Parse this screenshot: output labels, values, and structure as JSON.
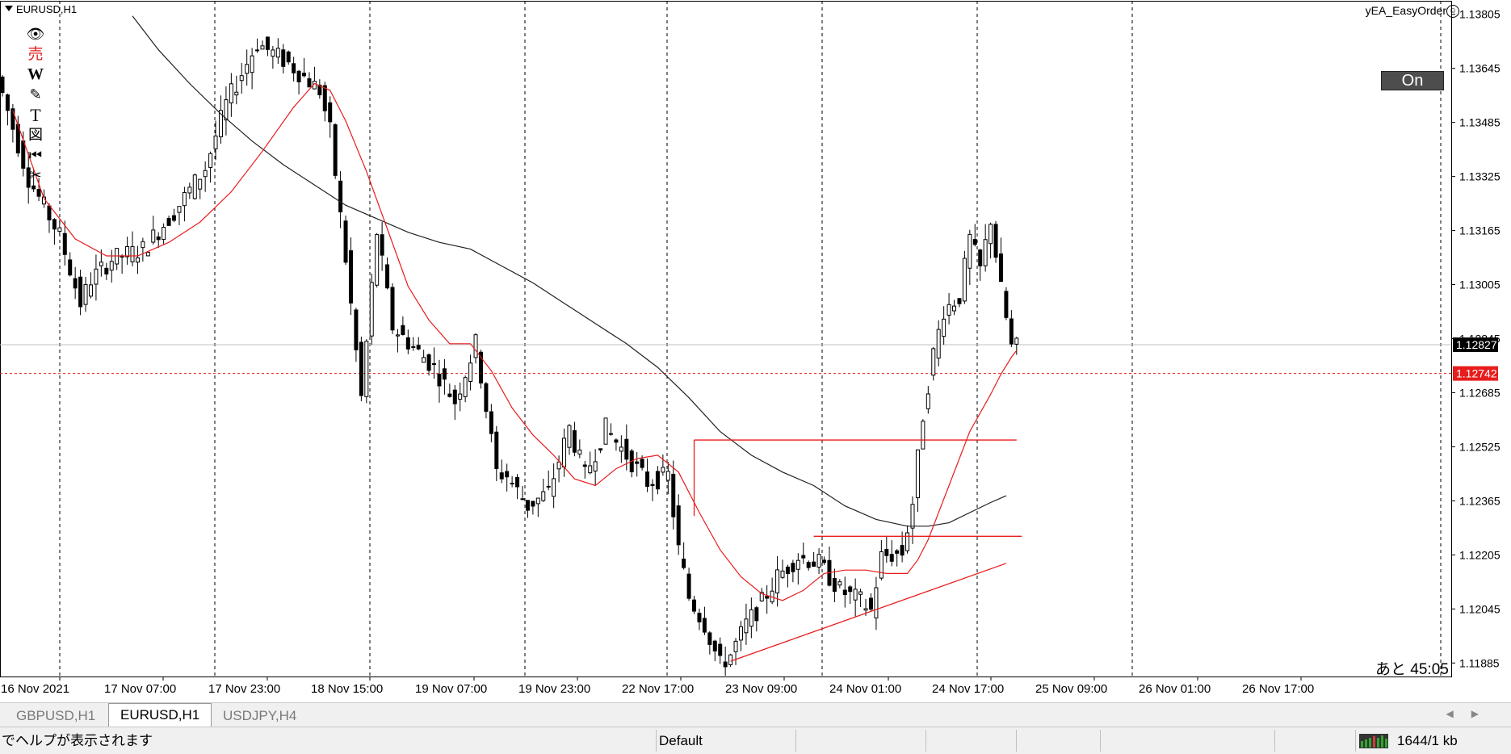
{
  "chart": {
    "title": "EURUSD,H1",
    "ea_name": "yEA_EasyOrder",
    "ea_icon": "smiley-icon",
    "on_button": "On",
    "countdown": "あと 45:05",
    "bid_price_label": "1.12827",
    "hidden_price_label": "1.12845",
    "red_level_label": "1.12742",
    "colors": {
      "up": "#ffffff",
      "down": "#000000",
      "ma_fast": "#e81c1c",
      "ma_slow": "#202020",
      "level": "#e81c1c"
    }
  },
  "toolbar": [
    {
      "icon": "eye-icon",
      "glyph": "👁"
    },
    {
      "icon": "sell-icon",
      "glyph": "売"
    },
    {
      "icon": "w-icon",
      "glyph": "W"
    },
    {
      "icon": "pencil-icon",
      "glyph": "✎"
    },
    {
      "icon": "text-icon",
      "glyph": "T"
    },
    {
      "icon": "figure-icon",
      "glyph": "図"
    },
    {
      "icon": "rewind-icon",
      "glyph": "⏮"
    },
    {
      "icon": "scissors-icon",
      "glyph": "✂"
    }
  ],
  "chart_data": {
    "type": "candlestick",
    "symbol": "EURUSD",
    "timeframe": "H1",
    "y_ticks": [
      "1.13805",
      "1.13645",
      "1.13485",
      "1.13325",
      "1.13165",
      "1.13005",
      "1.12845",
      "1.12685",
      "1.12525",
      "1.12365",
      "1.12205",
      "1.12045",
      "1.11885"
    ],
    "ylim": [
      1.11845,
      1.13845
    ],
    "x_ticks": [
      "16 Nov 2021",
      "17 Nov 07:00",
      "17 Nov 23:00",
      "18 Nov 15:00",
      "19 Nov 07:00",
      "19 Nov 23:00",
      "22 Nov 17:00",
      "23 Nov 09:00",
      "24 Nov 01:00",
      "24 Nov 17:00",
      "25 Nov 09:00",
      "26 Nov 01:00",
      "26 Nov 17:00"
    ],
    "anchors": [
      {
        "pos": 0,
        "price": 1.1362
      },
      {
        "pos": 6,
        "price": 1.1332
      },
      {
        "pos": 12,
        "price": 1.1315
      },
      {
        "pos": 16,
        "price": 1.1295
      },
      {
        "pos": 18,
        "price": 1.1302
      },
      {
        "pos": 22,
        "price": 1.1308
      },
      {
        "pos": 28,
        "price": 1.1311
      },
      {
        "pos": 34,
        "price": 1.1322
      },
      {
        "pos": 40,
        "price": 1.1335
      },
      {
        "pos": 44,
        "price": 1.1354
      },
      {
        "pos": 50,
        "price": 1.1372
      },
      {
        "pos": 56,
        "price": 1.1366
      },
      {
        "pos": 62,
        "price": 1.1358
      },
      {
        "pos": 64,
        "price": 1.1346
      },
      {
        "pos": 67,
        "price": 1.1308
      },
      {
        "pos": 70,
        "price": 1.1267
      },
      {
        "pos": 73,
        "price": 1.1316
      },
      {
        "pos": 76,
        "price": 1.1288
      },
      {
        "pos": 80,
        "price": 1.1282
      },
      {
        "pos": 84,
        "price": 1.1276
      },
      {
        "pos": 88,
        "price": 1.1266
      },
      {
        "pos": 92,
        "price": 1.1283
      },
      {
        "pos": 96,
        "price": 1.1245
      },
      {
        "pos": 98,
        "price": 1.1244
      },
      {
        "pos": 102,
        "price": 1.1235
      },
      {
        "pos": 106,
        "price": 1.1239
      },
      {
        "pos": 110,
        "price": 1.1258
      },
      {
        "pos": 113,
        "price": 1.1244
      },
      {
        "pos": 117,
        "price": 1.1258
      },
      {
        "pos": 121,
        "price": 1.125
      },
      {
        "pos": 125,
        "price": 1.1242
      },
      {
        "pos": 129,
        "price": 1.1244
      },
      {
        "pos": 131,
        "price": 1.1222
      },
      {
        "pos": 133,
        "price": 1.1208
      },
      {
        "pos": 136,
        "price": 1.12
      },
      {
        "pos": 139,
        "price": 1.1188
      },
      {
        "pos": 141,
        "price": 1.1191
      },
      {
        "pos": 144,
        "price": 1.12
      },
      {
        "pos": 146,
        "price": 1.1204
      },
      {
        "pos": 150,
        "price": 1.1214
      },
      {
        "pos": 154,
        "price": 1.122
      },
      {
        "pos": 158,
        "price": 1.1218
      },
      {
        "pos": 162,
        "price": 1.121
      },
      {
        "pos": 166,
        "price": 1.1207
      },
      {
        "pos": 168,
        "price": 1.1204
      },
      {
        "pos": 170,
        "price": 1.122
      },
      {
        "pos": 174,
        "price": 1.1221
      },
      {
        "pos": 176,
        "price": 1.1236
      },
      {
        "pos": 178,
        "price": 1.1262
      },
      {
        "pos": 180,
        "price": 1.128
      },
      {
        "pos": 182,
        "price": 1.1293
      },
      {
        "pos": 185,
        "price": 1.1297
      },
      {
        "pos": 187,
        "price": 1.1314
      },
      {
        "pos": 189,
        "price": 1.1305
      },
      {
        "pos": 191,
        "price": 1.132
      },
      {
        "pos": 193,
        "price": 1.1299
      },
      {
        "pos": 195,
        "price": 1.1282
      }
    ],
    "ma_fast": [
      {
        "pos": 2,
        "price": 1.1352
      },
      {
        "pos": 8,
        "price": 1.1326
      },
      {
        "pos": 14,
        "price": 1.1314
      },
      {
        "pos": 20,
        "price": 1.1309
      },
      {
        "pos": 26,
        "price": 1.1309
      },
      {
        "pos": 32,
        "price": 1.1313
      },
      {
        "pos": 38,
        "price": 1.1319
      },
      {
        "pos": 44,
        "price": 1.1328
      },
      {
        "pos": 50,
        "price": 1.134
      },
      {
        "pos": 56,
        "price": 1.1353
      },
      {
        "pos": 60,
        "price": 1.136
      },
      {
        "pos": 63,
        "price": 1.1358
      },
      {
        "pos": 66,
        "price": 1.1349
      },
      {
        "pos": 70,
        "price": 1.1334
      },
      {
        "pos": 74,
        "price": 1.1317
      },
      {
        "pos": 78,
        "price": 1.13
      },
      {
        "pos": 82,
        "price": 1.129
      },
      {
        "pos": 86,
        "price": 1.1283
      },
      {
        "pos": 90,
        "price": 1.1283
      },
      {
        "pos": 94,
        "price": 1.1275
      },
      {
        "pos": 98,
        "price": 1.1264
      },
      {
        "pos": 102,
        "price": 1.1256
      },
      {
        "pos": 106,
        "price": 1.125
      },
      {
        "pos": 110,
        "price": 1.1243
      },
      {
        "pos": 114,
        "price": 1.1241
      },
      {
        "pos": 118,
        "price": 1.1246
      },
      {
        "pos": 122,
        "price": 1.1249
      },
      {
        "pos": 126,
        "price": 1.125
      },
      {
        "pos": 130,
        "price": 1.1245
      },
      {
        "pos": 134,
        "price": 1.1233
      },
      {
        "pos": 138,
        "price": 1.1222
      },
      {
        "pos": 142,
        "price": 1.1214
      },
      {
        "pos": 146,
        "price": 1.1209
      },
      {
        "pos": 150,
        "price": 1.1207
      },
      {
        "pos": 154,
        "price": 1.121
      },
      {
        "pos": 158,
        "price": 1.1215
      },
      {
        "pos": 162,
        "price": 1.1216
      },
      {
        "pos": 166,
        "price": 1.1216
      },
      {
        "pos": 170,
        "price": 1.1215
      },
      {
        "pos": 174,
        "price": 1.1215
      },
      {
        "pos": 176,
        "price": 1.1219
      },
      {
        "pos": 178,
        "price": 1.1225
      },
      {
        "pos": 182,
        "price": 1.1241
      },
      {
        "pos": 186,
        "price": 1.1257
      },
      {
        "pos": 190,
        "price": 1.1268
      },
      {
        "pos": 192,
        "price": 1.1274
      },
      {
        "pos": 194,
        "price": 1.1279
      },
      {
        "pos": 195,
        "price": 1.1281
      }
    ],
    "ma_slow": [
      {
        "pos": 25,
        "price": 1.138
      },
      {
        "pos": 30,
        "price": 1.137
      },
      {
        "pos": 36,
        "price": 1.136
      },
      {
        "pos": 42,
        "price": 1.1351
      },
      {
        "pos": 48,
        "price": 1.1343
      },
      {
        "pos": 54,
        "price": 1.1336
      },
      {
        "pos": 60,
        "price": 1.133
      },
      {
        "pos": 66,
        "price": 1.1324
      },
      {
        "pos": 72,
        "price": 1.132
      },
      {
        "pos": 78,
        "price": 1.1316
      },
      {
        "pos": 84,
        "price": 1.1313
      },
      {
        "pos": 90,
        "price": 1.1311
      },
      {
        "pos": 96,
        "price": 1.1306
      },
      {
        "pos": 102,
        "price": 1.1301
      },
      {
        "pos": 108,
        "price": 1.1295
      },
      {
        "pos": 114,
        "price": 1.1289
      },
      {
        "pos": 120,
        "price": 1.1283
      },
      {
        "pos": 126,
        "price": 1.1276
      },
      {
        "pos": 132,
        "price": 1.1267
      },
      {
        "pos": 138,
        "price": 1.1257
      },
      {
        "pos": 144,
        "price": 1.125
      },
      {
        "pos": 150,
        "price": 1.1245
      },
      {
        "pos": 156,
        "price": 1.1241
      },
      {
        "pos": 162,
        "price": 1.1235
      },
      {
        "pos": 168,
        "price": 1.1231
      },
      {
        "pos": 174,
        "price": 1.1229
      },
      {
        "pos": 178,
        "price": 1.1229
      },
      {
        "pos": 182,
        "price": 1.123
      },
      {
        "pos": 186,
        "price": 1.1233
      },
      {
        "pos": 190,
        "price": 1.1236
      },
      {
        "pos": 193,
        "price": 1.1238
      }
    ],
    "objects": [
      {
        "kind": "segment",
        "name": "resistance-line-upper",
        "p1": [
          133,
          1.12545
        ],
        "p2": [
          195,
          1.12545
        ]
      },
      {
        "kind": "segment",
        "name": "resistance-vertical",
        "p1": [
          133,
          1.12545
        ],
        "p2": [
          133,
          1.1232
        ]
      },
      {
        "kind": "segment",
        "name": "resistance-line-lower",
        "p1": [
          156,
          1.1226
        ],
        "p2": [
          196,
          1.1226
        ]
      },
      {
        "kind": "segment",
        "name": "support-trendline",
        "p1": [
          140,
          1.1189
        ],
        "p2": [
          193,
          1.1218
        ]
      }
    ]
  },
  "tabs": [
    "GBPUSD,H1",
    "EURUSD,H1",
    "USDJPY,H4"
  ],
  "active_tab": 1,
  "statusbar": {
    "help_text": "でヘルプが表示されます",
    "profile": "Default",
    "traffic": "1644/1 kb"
  }
}
